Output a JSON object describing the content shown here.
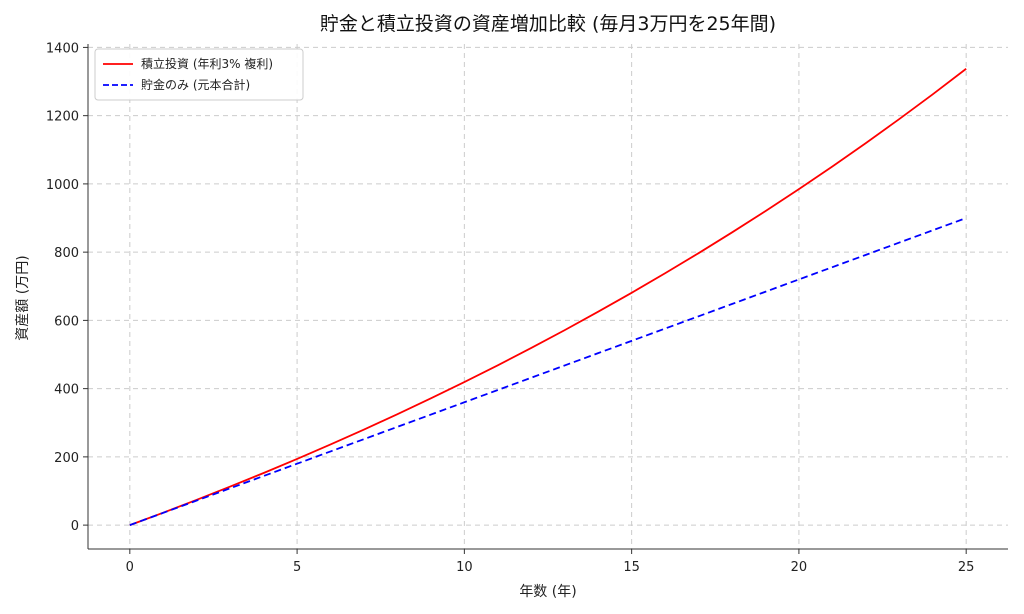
{
  "chart_data": {
    "type": "line",
    "title": "貯金と積立投資の資産増加比較 (毎月3万円を25年間)",
    "xlabel": "年数 (年)",
    "ylabel": "資産額 (万円)",
    "xlim": [
      -1.25,
      26.25
    ],
    "ylim": [
      -70,
      1410
    ],
    "xticks": [
      0,
      5,
      10,
      15,
      20,
      25
    ],
    "yticks": [
      0,
      200,
      400,
      600,
      800,
      1000,
      1200,
      1400
    ],
    "grid": true,
    "legend_position": "top-left",
    "x": [
      0,
      1,
      2,
      3,
      4,
      5,
      6,
      7,
      8,
      9,
      10,
      11,
      12,
      13,
      14,
      15,
      16,
      17,
      18,
      19,
      20,
      21,
      22,
      23,
      24,
      25
    ],
    "series": [
      {
        "name": "積立投資 (年利3% 複利)",
        "color": "#ff0000",
        "style": "solid",
        "values": [
          0,
          36.5,
          74.1,
          112.9,
          152.8,
          194.0,
          236.4,
          280.1,
          325.1,
          371.5,
          419.3,
          468.5,
          519.3,
          571.5,
          625.4,
          680.9,
          738.1,
          797.0,
          857.7,
          920.3,
          984.7,
          1051.1,
          1119.5,
          1190.0,
          1262.6,
          1337.4
        ]
      },
      {
        "name": "貯金のみ (元本合計)",
        "color": "#0000ff",
        "style": "dashed",
        "values": [
          0,
          36,
          72,
          108,
          144,
          180,
          216,
          252,
          288,
          324,
          360,
          396,
          432,
          468,
          504,
          540,
          576,
          612,
          648,
          684,
          720,
          756,
          792,
          828,
          864,
          900
        ]
      }
    ]
  }
}
